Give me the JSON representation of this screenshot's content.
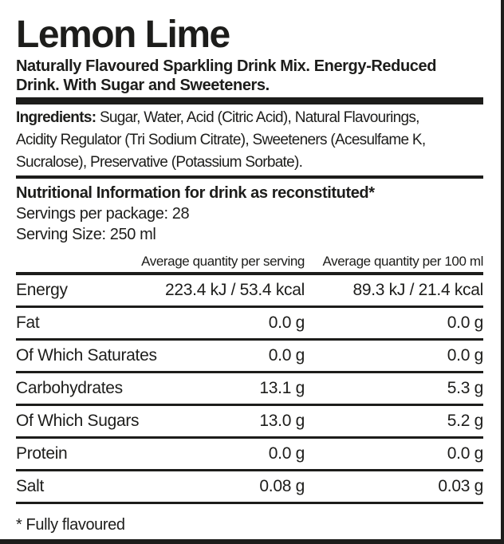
{
  "title": "Lemon Lime",
  "subtitle": "Naturally Flavoured Sparkling Drink Mix. Energy-Reduced\nDrink. With Sugar and Sweeteners.",
  "ingredients": {
    "label": "Ingredients:",
    "text": "Sugar, Water, Acid (Citric Acid), Natural Flavourings,\nAcidity Regulator (Tri Sodium Citrate), Sweeteners (Acesulfame K,\nSucralose), Preservative (Potassium Sorbate)."
  },
  "nutrition": {
    "heading": "Nutritional Information for drink as reconstituted*",
    "servings_per_package": "Servings per package: 28",
    "serving_size": "Serving Size: 250 ml",
    "column_headers": {
      "per_serving": "Average quantity per serving",
      "per_100ml": "Average quantity per 100 ml"
    },
    "rows": [
      {
        "label": "Energy",
        "per_serving": "223.4 kJ / 53.4 kcal",
        "per_100ml": "89.3 kJ / 21.4 kcal"
      },
      {
        "label": "Fat",
        "per_serving": "0.0 g",
        "per_100ml": "0.0 g"
      },
      {
        "label": "Of Which Saturates",
        "per_serving": "0.0 g",
        "per_100ml": "0.0 g"
      },
      {
        "label": "Carbohydrates",
        "per_serving": "13.1 g",
        "per_100ml": "5.3 g"
      },
      {
        "label": "Of Which Sugars",
        "per_serving": "13.0 g",
        "per_100ml": "5.2 g"
      },
      {
        "label": "Protein",
        "per_serving": "0.0 g",
        "per_100ml": "0.0 g"
      },
      {
        "label": "Salt",
        "per_serving": "0.08 g",
        "per_100ml": "0.03 g"
      }
    ]
  },
  "footnote": "* Fully flavoured",
  "colors": {
    "text": "#1d1d1b",
    "background": "#ffffff",
    "rule": "#1d1d1b"
  }
}
